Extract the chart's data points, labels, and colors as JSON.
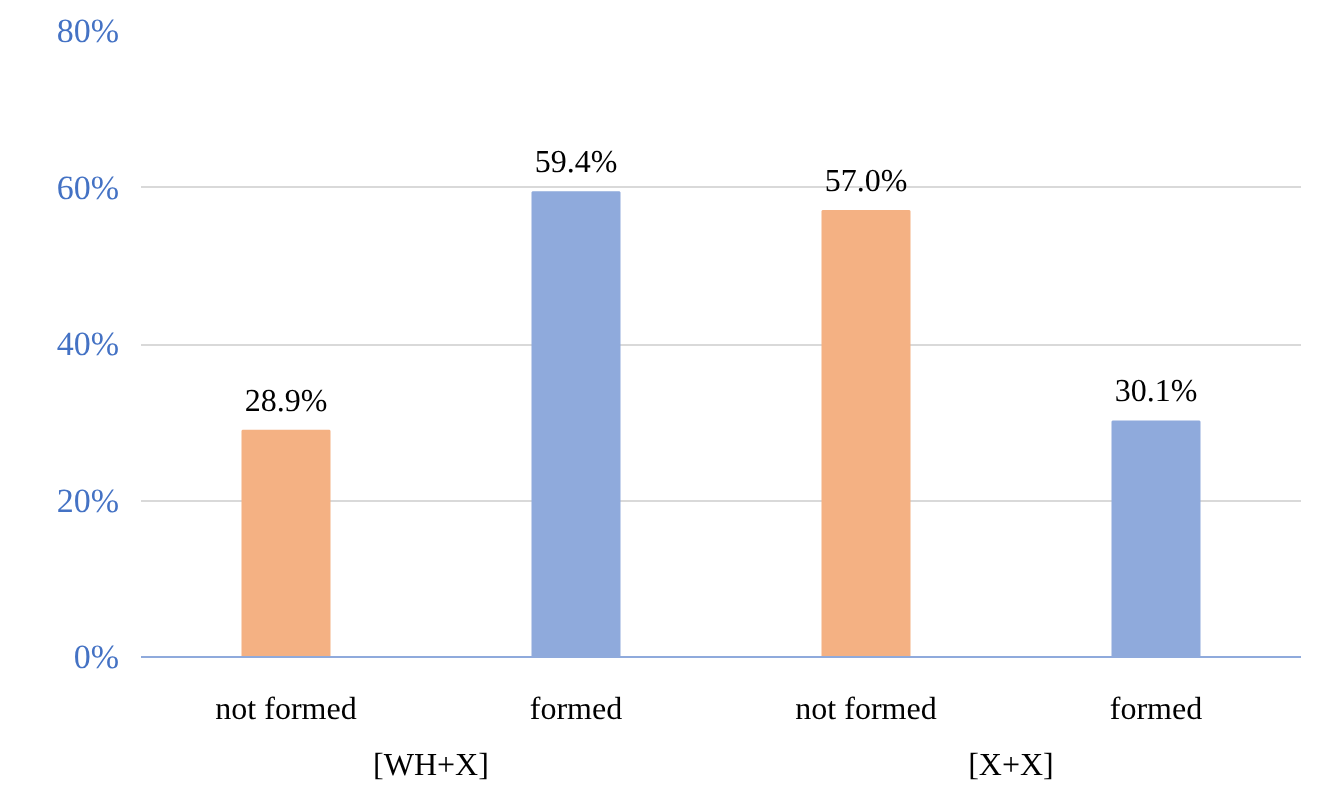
{
  "chart_data": {
    "type": "bar",
    "categories": [
      "not formed",
      "formed",
      "not formed",
      "formed"
    ],
    "values": [
      28.9,
      59.4,
      57.0,
      30.1
    ],
    "colors": [
      "#f4b183",
      "#8faadc",
      "#f4b183",
      "#8faadc"
    ],
    "value_labels": [
      "28.9%",
      "59.4%",
      "57.0%",
      "30.1%"
    ],
    "annotations": [
      "[WH+X]",
      "[X+X]"
    ],
    "ylim": [
      0,
      80
    ],
    "yticks": [
      {
        "value": 0,
        "label": "0%"
      },
      {
        "value": 20,
        "label": "20%"
      },
      {
        "value": 40,
        "label": "40%"
      },
      {
        "value": 60,
        "label": "60%"
      },
      {
        "value": 80,
        "label": "80%"
      }
    ],
    "grid": "y"
  }
}
